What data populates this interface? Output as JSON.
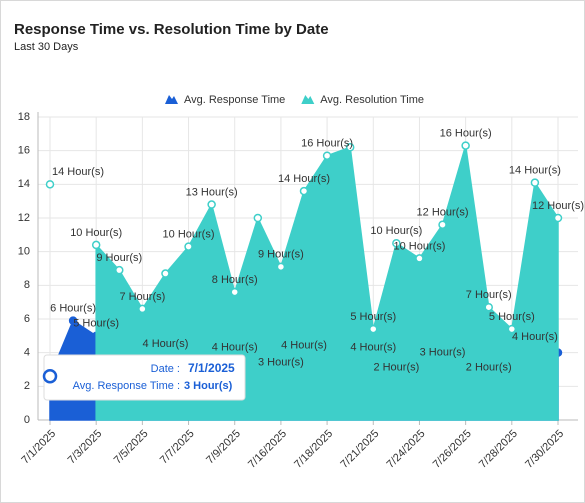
{
  "chart_data": {
    "type": "area",
    "title": "Response Time vs. Resolution Time by Date",
    "subtitle": "Last 30 Days",
    "categories": [
      "7/1/2025",
      null,
      "7/3/2025",
      null,
      "7/5/2025",
      null,
      "7/7/2025",
      null,
      "7/9/2025",
      null,
      "7/16/2025",
      null,
      "7/18/2025",
      null,
      "7/21/2025",
      null,
      "7/24/2025",
      null,
      "7/26/2025",
      null,
      "7/28/2025",
      null,
      "7/30/2025"
    ],
    "series": [
      {
        "name": "Avg. Response Time",
        "color": "#1a5fd6",
        "values": [
          2.6,
          5.9,
          5,
          4.4,
          4.1,
          3.8,
          3.9,
          4.2,
          3.6,
          3.4,
          2.7,
          3.7,
          3.9,
          4.1,
          3.6,
          2.4,
          2.9,
          3.3,
          3.1,
          2.4,
          3.3,
          4.2,
          4.0
        ],
        "value_labels": [
          "3",
          "6 Hour(s)",
          "5 Hour(s)",
          null,
          null,
          "4 Hour(s)",
          null,
          null,
          "4 Hour(s)",
          null,
          "3 Hour(s)",
          "4 Hour(s)",
          null,
          null,
          "4 Hour(s)",
          "2 Hour(s)",
          null,
          "3 Hour(s)",
          null,
          "2 Hour(s)",
          null,
          "4 Hour(s)",
          null
        ]
      },
      {
        "name": "Avg. Resolution Time",
        "color": "#3ecfc9",
        "values": [
          14,
          null,
          10.4,
          8.9,
          6.6,
          8.7,
          10.3,
          12.8,
          7.6,
          12,
          9.1,
          13.6,
          15.7,
          16.2,
          5.4,
          10.5,
          9.6,
          11.6,
          16.3,
          6.7,
          5.4,
          14.1,
          12
        ],
        "value_labels": [
          "14 Hour(s)",
          null,
          "10 Hour(s)",
          "9 Hour(s)",
          "7 Hour(s)",
          null,
          "10 Hour(s)",
          "13 Hour(s)",
          "8 Hour(s)",
          null,
          "9 Hour(s)",
          "14 Hour(s)",
          "16 Hour(s)",
          null,
          "5 Hour(s)",
          "10 Hour(s)",
          "10 Hour(s)",
          "12 Hour(s)",
          "16 Hour(s)",
          "7 Hour(s)",
          "5 Hour(s)",
          "14 Hour(s)",
          "12 Hour(s)"
        ]
      }
    ],
    "ylim": [
      0,
      18
    ],
    "yticks": [
      0,
      2,
      4,
      6,
      8,
      10,
      12,
      14,
      16,
      18
    ],
    "grid": true,
    "legend": "top",
    "tooltip": {
      "date_label": "Date :",
      "date": "7/1/2025",
      "series_label": "Avg. Response Time :",
      "value": "3 Hour(s)"
    }
  }
}
